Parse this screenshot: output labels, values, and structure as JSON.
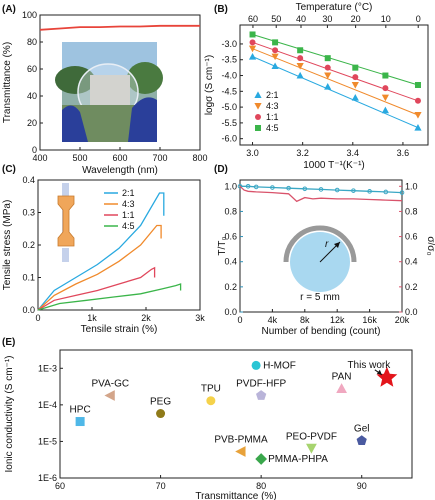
{
  "panels": {
    "A": {
      "letter": "(A)"
    },
    "B": {
      "letter": "(B)"
    },
    "C": {
      "letter": "(C)"
    },
    "D": {
      "letter": "(D)"
    },
    "E": {
      "letter": "(E)"
    }
  },
  "chart_data": [
    {
      "id": "A",
      "type": "line",
      "xlabel": "Wavelength (nm)",
      "ylabel": "Transmittance (%)",
      "xlim": [
        400,
        800
      ],
      "ylim": [
        0,
        100
      ],
      "xticks": [
        "400",
        "500",
        "600",
        "700",
        "800"
      ],
      "yticks": [
        "0",
        "20",
        "40",
        "60",
        "80",
        "100"
      ],
      "series": [
        {
          "x": [
            400,
            450,
            500,
            550,
            600,
            650,
            700,
            750,
            800
          ],
          "y": [
            89,
            90,
            91,
            91,
            91.5,
            91.5,
            92,
            92,
            92
          ],
          "color": "#e8443a"
        }
      ],
      "inset": "photo of transparent film held against building"
    },
    {
      "id": "B",
      "type": "scatter",
      "xlabel": "1000 T⁻¹(K⁻¹)",
      "ylabel": "logσ (S cm⁻¹)",
      "top_xlabel": "Temperature (°C)",
      "xlim": [
        2.95,
        3.7
      ],
      "ylim": [
        -6.2,
        -2.4
      ],
      "xticks": [
        "3.0",
        "3.2",
        "3.4",
        "3.6"
      ],
      "yticks": [
        "-3.0",
        "-3.5",
        "-4.0",
        "-4.5",
        "-5.0",
        "-5.5",
        "-6.0"
      ],
      "top_ticks": [
        "60",
        "50",
        "40",
        "30",
        "20",
        "10",
        "0"
      ],
      "legend": "lower-left",
      "series": [
        {
          "name": "2:1",
          "color": "#29a9e0",
          "marker": "triangle-up",
          "x": [
            3.0,
            3.09,
            3.19,
            3.3,
            3.41,
            3.53,
            3.66
          ],
          "y": [
            -3.4,
            -3.7,
            -4.0,
            -4.35,
            -4.7,
            -5.1,
            -5.65
          ]
        },
        {
          "name": "4:3",
          "color": "#f08a2c",
          "marker": "triangle-down",
          "x": [
            3.0,
            3.09,
            3.19,
            3.3,
            3.41,
            3.53,
            3.66
          ],
          "y": [
            -3.15,
            -3.4,
            -3.7,
            -4.0,
            -4.3,
            -4.7,
            -5.25
          ]
        },
        {
          "name": "1:1",
          "color": "#e0475c",
          "marker": "circle",
          "x": [
            3.0,
            3.09,
            3.19,
            3.3,
            3.41,
            3.53,
            3.66
          ],
          "y": [
            -2.95,
            -3.2,
            -3.45,
            -3.75,
            -4.05,
            -4.4,
            -4.8
          ]
        },
        {
          "name": "4:5",
          "color": "#3bb54a",
          "marker": "square",
          "x": [
            3.0,
            3.09,
            3.19,
            3.3,
            3.41,
            3.53,
            3.66
          ],
          "y": [
            -2.7,
            -2.95,
            -3.2,
            -3.45,
            -3.75,
            -4.0,
            -4.3
          ]
        }
      ]
    },
    {
      "id": "C",
      "type": "line",
      "xlabel": "Tensile strain (%)",
      "ylabel": "Tensile stress (MPa)",
      "xlim": [
        0,
        3000
      ],
      "ylim": [
        0,
        0.4
      ],
      "xticks": [
        "0",
        "1k",
        "2k",
        "3k"
      ],
      "yticks": [
        "0.0",
        "0.1",
        "0.2",
        "0.3",
        "0.4"
      ],
      "legend": "top-right",
      "series": [
        {
          "name": "2:1",
          "color": "#29a9e0",
          "x": [
            0,
            300,
            700,
            1100,
            1500,
            1900,
            2250,
            2330,
            2330
          ],
          "y": [
            0,
            0.06,
            0.1,
            0.14,
            0.19,
            0.26,
            0.36,
            0.36,
            0.29
          ]
        },
        {
          "name": "4:3",
          "color": "#f08a2c",
          "x": [
            0,
            300,
            700,
            1100,
            1500,
            1900,
            2200,
            2280,
            2280
          ],
          "y": [
            0,
            0.045,
            0.08,
            0.11,
            0.15,
            0.2,
            0.26,
            0.26,
            0.22
          ]
        },
        {
          "name": "1:1",
          "color": "#e0475c",
          "x": [
            0,
            300,
            700,
            1100,
            1500,
            1900,
            2100,
            2160,
            2160
          ],
          "y": [
            0,
            0.03,
            0.045,
            0.06,
            0.08,
            0.1,
            0.125,
            0.13,
            0.1
          ]
        },
        {
          "name": "4:5",
          "color": "#3bb54a",
          "x": [
            0,
            400,
            900,
            1400,
            1900,
            2300,
            2550,
            2640,
            2640
          ],
          "y": [
            0,
            0.02,
            0.03,
            0.04,
            0.05,
            0.065,
            0.075,
            0.08,
            0.06
          ]
        }
      ]
    },
    {
      "id": "D",
      "type": "line",
      "xlabel": "Number of bending (count)",
      "ylabel": "T/T₀",
      "y2label": "σ/σ₀",
      "xlim": [
        0,
        20000
      ],
      "ylim": [
        0,
        1.05
      ],
      "xticks": [
        "0",
        "4k",
        "8k",
        "12k",
        "16k",
        "20k"
      ],
      "yticks": [
        "0.0",
        "0.2",
        "0.4",
        "0.6",
        "0.8",
        "1.0"
      ],
      "y2ticks": [
        "0.0",
        "0.2",
        "0.4",
        "0.6",
        "0.8",
        "1.0"
      ],
      "annotation": "r = 5 mm",
      "r_label": "r",
      "series": [
        {
          "name": "T/T0",
          "color": "#3aa7c4",
          "marker": "circle",
          "x": [
            0,
            1000,
            2000,
            4000,
            6000,
            8000,
            10000,
            12000,
            14000,
            16000,
            18000,
            20000
          ],
          "y": [
            1.0,
            1.0,
            0.995,
            0.99,
            0.985,
            0.98,
            0.975,
            0.97,
            0.965,
            0.96,
            0.955,
            0.95
          ]
        },
        {
          "name": "sigma/sigma0",
          "color": "#d9536b",
          "marker": "none",
          "x": [
            0,
            500,
            1000,
            2000,
            4000,
            6000,
            7000,
            8000,
            9000,
            10000,
            12000,
            14000,
            16000,
            18000,
            20000
          ],
          "y": [
            1.0,
            0.97,
            0.96,
            0.955,
            0.95,
            0.94,
            0.88,
            0.91,
            0.9,
            0.905,
            0.9,
            0.9,
            0.895,
            0.89,
            0.885
          ]
        }
      ]
    },
    {
      "id": "E",
      "type": "scatter",
      "xlabel": "Transmittance (%)",
      "ylabel": "Ionic conductivity (S cm⁻¹)",
      "xlim": [
        60,
        95
      ],
      "ylim_log10": [
        -6,
        -2.5
      ],
      "xticks": [
        "60",
        "70",
        "80",
        "90"
      ],
      "yticks": [
        "1E-6",
        "1E-5",
        "1E-4",
        "1E-3"
      ],
      "points": [
        {
          "name": "HPC",
          "x": 62,
          "y": 3.5e-05,
          "color": "#4fb8e8",
          "marker": "square"
        },
        {
          "name": "PVA-GC",
          "x": 65,
          "y": 0.00018,
          "color": "#d3a58a",
          "marker": "triangle-left"
        },
        {
          "name": "PEG",
          "x": 70,
          "y": 5.8e-05,
          "color": "#8f7a19",
          "marker": "circle"
        },
        {
          "name": "TPU",
          "x": 75,
          "y": 0.00013,
          "color": "#f5d24a",
          "marker": "circle"
        },
        {
          "name": "H-MOF",
          "x": 79.5,
          "y": 0.0012,
          "color": "#2bc5d4",
          "marker": "circle"
        },
        {
          "name": "PVDF-HFP",
          "x": 80,
          "y": 0.00018,
          "color": "#b9b4d9",
          "marker": "pentagon"
        },
        {
          "name": "PVB-PMMA",
          "x": 78,
          "y": 5.3e-06,
          "color": "#e8a23a",
          "marker": "triangle-left"
        },
        {
          "name": "PMMA-PHPA",
          "x": 80,
          "y": 3.3e-06,
          "color": "#3aa74c",
          "marker": "diamond"
        },
        {
          "name": "PEO-PVDF",
          "x": 85,
          "y": 6.5e-06,
          "color": "#a7d46f",
          "marker": "triangle-down"
        },
        {
          "name": "PAN",
          "x": 88,
          "y": 0.00028,
          "color": "#f0a8c0",
          "marker": "triangle-up"
        },
        {
          "name": "Gel",
          "x": 90,
          "y": 1.05e-05,
          "color": "#4a5aa0",
          "marker": "pentagon"
        },
        {
          "name": "This work",
          "x": 92.5,
          "y": 0.00055,
          "color": "#e3151b",
          "marker": "star"
        }
      ]
    }
  ]
}
